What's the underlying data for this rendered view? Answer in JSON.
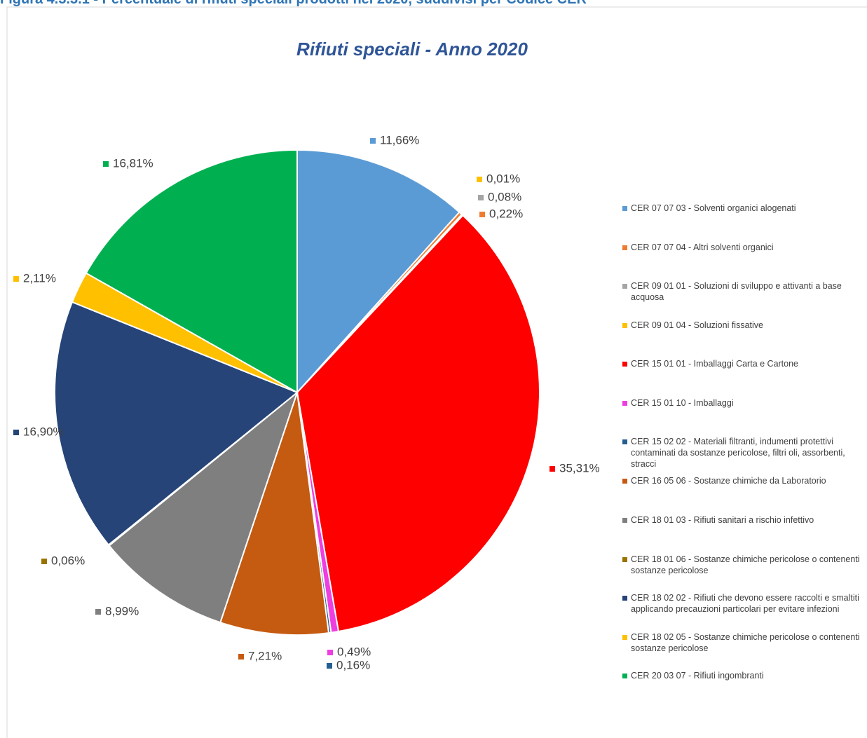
{
  "caption": "Figura 4.3.3.1 - Percentuale di rifiuti speciali prodotti nel 2020, suddivisi per Codice CER",
  "chart_data": {
    "type": "pie",
    "title": "Rifiuti speciali -  Anno 2020",
    "categories": [
      "CER 07 07 03 - Solventi organici alogenati",
      "CER 07 07 04 - Altri solventi organici",
      "CER 09 01 01 - Soluzioni di sviluppo e attivanti a base acquosa",
      "CER 09 01 04 - Soluzioni fissative",
      "CER 15 01 01 - Imballaggi Carta e Cartone",
      "CER 15 01 10 - Imballaggi",
      "CER 15 02 02 - Materiali filtranti, indumenti protettivi contaminati da sostanze pericolose, filtri oli, assorbenti, stracci",
      "CER 16 05 06 - Sostanze chimiche da Laboratorio",
      "CER 18 01 03 - Rifiuti sanitari a rischio infettivo",
      "CER 18 01 06 - Sostanze chimiche pericolose o contenenti sostanze pericolose",
      "CER 18 02 02 - Rifiuti che devono essere raccolti e smaltiti applicando precauzioni particolari per evitare infezioni",
      "CER 18 02 05 - Sostanze chimiche pericolose o contenenti sostanze pericolose",
      "CER 20 03 07 - Rifiuti ingombranti"
    ],
    "values": [
      11.66,
      0.22,
      0.08,
      0.01,
      35.31,
      0.49,
      0.16,
      7.21,
      8.99,
      0.06,
      16.9,
      2.11,
      16.81
    ],
    "value_labels": [
      "11,66%",
      "0,22%",
      "0,08%",
      "0,01%",
      "35,31%",
      "0,49%",
      "0,16%",
      "7,21%",
      "8,99%",
      "0,06%",
      "16,90%",
      "2,11%",
      "16,81%"
    ],
    "colors": [
      "#5b9bd5",
      "#ed7d31",
      "#a5a5a5",
      "#ffc000",
      "#ff0000",
      "#ee3ee0",
      "#255e91",
      "#c55a11",
      "#7f7f7f",
      "#997300",
      "#264478",
      "#ffc000",
      "#00b050"
    ]
  }
}
